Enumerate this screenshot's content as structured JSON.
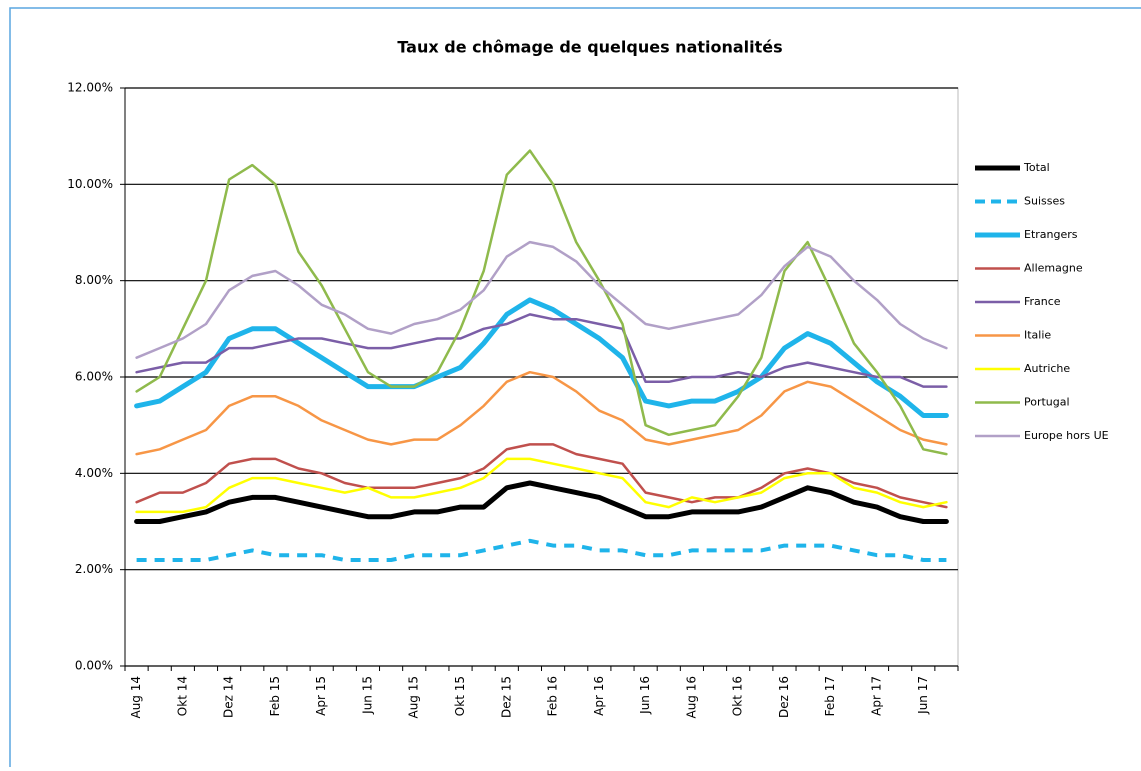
{
  "chart_data": {
    "type": "line",
    "title": "Taux de chômage de quelques nationalités",
    "categories": [
      "Aug 14",
      null,
      "Okt 14",
      null,
      "Dez 14",
      null,
      "Feb 15",
      null,
      "Apr 15",
      null,
      "Jun 15",
      null,
      "Aug 15",
      null,
      "Okt 15",
      null,
      "Dez 15",
      null,
      "Feb 16",
      null,
      "Apr 16",
      null,
      "Jun 16",
      null,
      "Aug 16",
      null,
      "Okt 16",
      null,
      "Dez 16",
      null,
      "Feb 17",
      null,
      "Apr 17",
      null,
      "Jun 17",
      null
    ],
    "ylim": [
      0,
      12
    ],
    "yticks": [
      {
        "value": 0,
        "label": "0.00%"
      },
      {
        "value": 2,
        "label": "2.00%"
      },
      {
        "value": 4,
        "label": "4.00%"
      },
      {
        "value": 6,
        "label": "6.00%"
      },
      {
        "value": 8,
        "label": "8.00%"
      },
      {
        "value": 10,
        "label": "10.00%"
      },
      {
        "value": 12,
        "label": "12.00%"
      }
    ],
    "grid": true,
    "legend": "right",
    "series": [
      {
        "name": "Total",
        "color": "#000000",
        "linewidth": 5,
        "values": [
          3.0,
          3.0,
          3.1,
          3.2,
          3.4,
          3.5,
          3.5,
          3.4,
          3.3,
          3.2,
          3.1,
          3.1,
          3.2,
          3.2,
          3.3,
          3.3,
          3.7,
          3.8,
          3.7,
          3.6,
          3.5,
          3.3,
          3.1,
          3.1,
          3.2,
          3.2,
          3.2,
          3.3,
          3.5,
          3.7,
          3.6,
          3.4,
          3.3,
          3.1,
          3.0,
          3.0
        ]
      },
      {
        "name": "Suisses",
        "color": "#1fb4ea",
        "linewidth": 4,
        "linestyle": "dashed",
        "values": [
          2.2,
          2.2,
          2.2,
          2.2,
          2.3,
          2.4,
          2.3,
          2.3,
          2.3,
          2.2,
          2.2,
          2.2,
          2.3,
          2.3,
          2.3,
          2.4,
          2.5,
          2.6,
          2.5,
          2.5,
          2.4,
          2.4,
          2.3,
          2.3,
          2.4,
          2.4,
          2.4,
          2.4,
          2.5,
          2.5,
          2.5,
          2.4,
          2.3,
          2.3,
          2.2,
          2.2
        ]
      },
      {
        "name": "Etrangers",
        "color": "#1fb4ea",
        "linewidth": 5,
        "values": [
          5.4,
          5.5,
          5.8,
          6.1,
          6.8,
          7.0,
          7.0,
          6.7,
          6.4,
          6.1,
          5.8,
          5.8,
          5.8,
          6.0,
          6.2,
          6.7,
          7.3,
          7.6,
          7.4,
          7.1,
          6.8,
          6.4,
          5.5,
          5.4,
          5.5,
          5.5,
          5.7,
          6.0,
          6.6,
          6.9,
          6.7,
          6.3,
          5.9,
          5.6,
          5.2,
          5.2
        ]
      },
      {
        "name": "Allemagne",
        "color": "#c0504d",
        "linewidth": 2.5,
        "values": [
          3.4,
          3.6,
          3.6,
          3.8,
          4.2,
          4.3,
          4.3,
          4.1,
          4.0,
          3.8,
          3.7,
          3.7,
          3.7,
          3.8,
          3.9,
          4.1,
          4.5,
          4.6,
          4.6,
          4.4,
          4.3,
          4.2,
          3.6,
          3.5,
          3.4,
          3.5,
          3.5,
          3.7,
          4.0,
          4.1,
          4.0,
          3.8,
          3.7,
          3.5,
          3.4,
          3.3
        ]
      },
      {
        "name": "France",
        "color": "#7b5ea7",
        "linewidth": 2.5,
        "values": [
          6.1,
          6.2,
          6.3,
          6.3,
          6.6,
          6.6,
          6.7,
          6.8,
          6.8,
          6.7,
          6.6,
          6.6,
          6.7,
          6.8,
          6.8,
          7.0,
          7.1,
          7.3,
          7.2,
          7.2,
          7.1,
          7.0,
          5.9,
          5.9,
          6.0,
          6.0,
          6.1,
          6.0,
          6.2,
          6.3,
          6.2,
          6.1,
          6.0,
          6.0,
          5.8,
          5.8
        ]
      },
      {
        "name": "Italie",
        "color": "#f79646",
        "linewidth": 2.5,
        "values": [
          4.4,
          4.5,
          4.7,
          4.9,
          5.4,
          5.6,
          5.6,
          5.4,
          5.1,
          4.9,
          4.7,
          4.6,
          4.7,
          4.7,
          5.0,
          5.4,
          5.9,
          6.1,
          6.0,
          5.7,
          5.3,
          5.1,
          4.7,
          4.6,
          4.7,
          4.8,
          4.9,
          5.2,
          5.7,
          5.9,
          5.8,
          5.5,
          5.2,
          4.9,
          4.7,
          4.6
        ]
      },
      {
        "name": "Autriche",
        "color": "#ffff00",
        "linewidth": 2.5,
        "values": [
          3.2,
          3.2,
          3.2,
          3.3,
          3.7,
          3.9,
          3.9,
          3.8,
          3.7,
          3.6,
          3.7,
          3.5,
          3.5,
          3.6,
          3.7,
          3.9,
          4.3,
          4.3,
          4.2,
          4.1,
          4.0,
          3.9,
          3.4,
          3.3,
          3.5,
          3.4,
          3.5,
          3.6,
          3.9,
          4.0,
          4.0,
          3.7,
          3.6,
          3.4,
          3.3,
          3.4
        ]
      },
      {
        "name": "Portugal",
        "color": "#8fba4c",
        "linewidth": 2.5,
        "values": [
          5.7,
          6.0,
          7.0,
          8.0,
          10.1,
          10.4,
          10.0,
          8.6,
          7.9,
          7.0,
          6.1,
          5.8,
          5.8,
          6.1,
          7.0,
          8.2,
          10.2,
          10.7,
          10.0,
          8.8,
          8.0,
          7.1,
          5.0,
          4.8,
          4.9,
          5.0,
          5.6,
          6.4,
          8.2,
          8.8,
          7.8,
          6.7,
          6.1,
          5.4,
          4.5,
          4.4
        ]
      },
      {
        "name": "Europe hors UE",
        "color": "#b1a0c7",
        "linewidth": 2.5,
        "values": [
          6.4,
          6.6,
          6.8,
          7.1,
          7.8,
          8.1,
          8.2,
          7.9,
          7.5,
          7.3,
          7.0,
          6.9,
          7.1,
          7.2,
          7.4,
          7.8,
          8.5,
          8.8,
          8.7,
          8.4,
          7.9,
          7.5,
          7.1,
          7.0,
          7.1,
          7.2,
          7.3,
          7.7,
          8.3,
          8.7,
          8.5,
          8.0,
          7.6,
          7.1,
          6.8,
          6.6
        ]
      }
    ]
  }
}
